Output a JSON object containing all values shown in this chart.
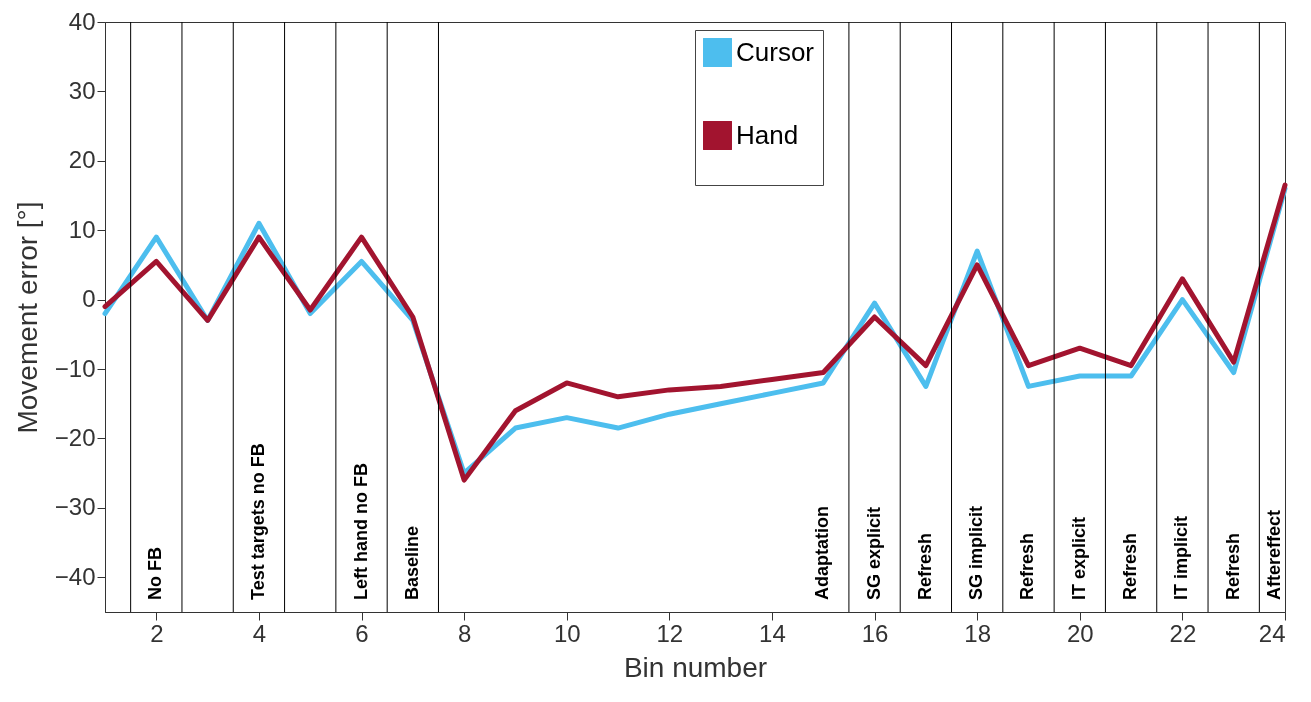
{
  "chart_data": {
    "type": "line",
    "xlabel": "Bin number",
    "ylabel": "Movement error [°]",
    "x": [
      1,
      2,
      3,
      4,
      5,
      6,
      7,
      8,
      9,
      10,
      11,
      12,
      13,
      14,
      15,
      16,
      17,
      18,
      19,
      20,
      21,
      22,
      23,
      24
    ],
    "series": [
      {
        "name": "Cursor",
        "color": "#4dbeee",
        "values": [
          -2,
          9,
          -3,
          11,
          -2,
          5.5,
          -3,
          -25,
          -18.5,
          -17,
          -18.5,
          -16.5,
          -15,
          -13.5,
          -12,
          -0.5,
          -12.5,
          7,
          -12.5,
          -11,
          -11,
          0,
          -10.5,
          16
        ]
      },
      {
        "name": "Hand",
        "color": "#a2142f",
        "values": [
          -1,
          5.5,
          -3,
          9,
          -1.5,
          9,
          -2.5,
          -26,
          -16,
          -12,
          -14,
          -13,
          -12.5,
          -11.5,
          -10.5,
          -2.5,
          -9.5,
          5,
          -9.5,
          -7,
          -9.5,
          3,
          -9,
          16.5
        ]
      }
    ],
    "xlim": [
      1,
      24
    ],
    "ylim": [
      -45,
      40
    ],
    "xticks": [
      2,
      4,
      6,
      8,
      10,
      12,
      14,
      16,
      18,
      20,
      22,
      24
    ],
    "yticks": [
      -40,
      -30,
      -20,
      -10,
      0,
      10,
      20,
      30,
      40
    ],
    "grid": false,
    "legend": "top",
    "marker": "none",
    "line_style": "solid",
    "ref_lines": [
      {
        "axis": "x",
        "value": 1.5,
        "color": "#000000"
      },
      {
        "axis": "x",
        "value": 2.5,
        "color": "#000000",
        "label": "No FB"
      },
      {
        "axis": "x",
        "value": 3.5,
        "color": "#000000"
      },
      {
        "axis": "x",
        "value": 4.5,
        "color": "#000000",
        "label": "Test targets no FB"
      },
      {
        "axis": "x",
        "value": 5.5,
        "color": "#000000"
      },
      {
        "axis": "x",
        "value": 6.5,
        "color": "#000000",
        "label": "Left hand no FB"
      },
      {
        "axis": "x",
        "value": 7.5,
        "color": "#000000",
        "label": "Baseline"
      },
      {
        "axis": "x",
        "value": 15.5,
        "color": "#000000",
        "label": "Adaptation"
      },
      {
        "axis": "x",
        "value": 16.5,
        "color": "#000000",
        "label": "SG explicit"
      },
      {
        "axis": "x",
        "value": 17.5,
        "color": "#000000",
        "label": "Refresh"
      },
      {
        "axis": "x",
        "value": 18.5,
        "color": "#000000",
        "label": "SG implicit"
      },
      {
        "axis": "x",
        "value": 19.5,
        "color": "#000000",
        "label": "Refresh"
      },
      {
        "axis": "x",
        "value": 20.5,
        "color": "#000000",
        "label": "IT explicit"
      },
      {
        "axis": "x",
        "value": 21.5,
        "color": "#000000",
        "label": "Refresh"
      },
      {
        "axis": "x",
        "value": 22.5,
        "color": "#000000",
        "label": "IT implicit"
      },
      {
        "axis": "x",
        "value": 23.5,
        "color": "#000000",
        "label": "Refresh"
      }
    ],
    "annotations": [
      "Aftereffect"
    ]
  }
}
